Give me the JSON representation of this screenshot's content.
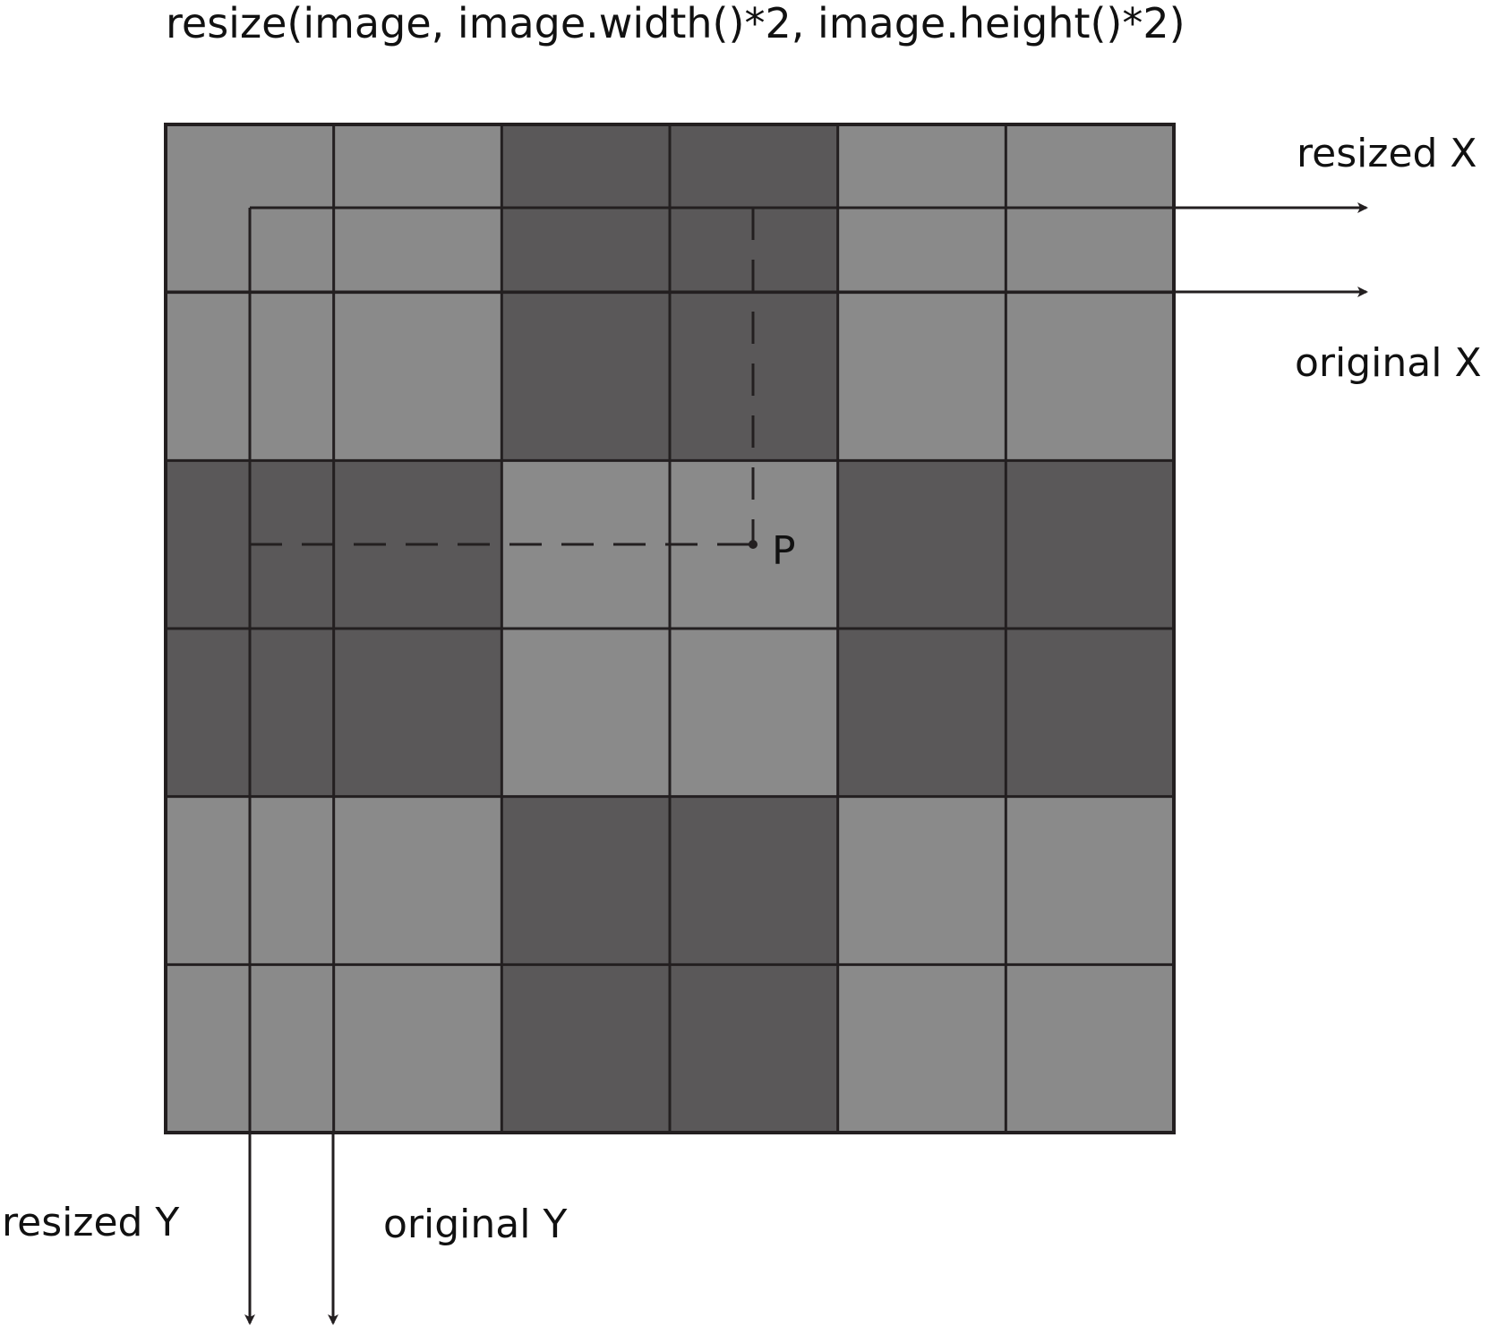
{
  "title": "resize(image, image.width()*2, image.height()*2)",
  "labels": {
    "resized_x": "resized X",
    "original_x": "original X",
    "resized_y": "resized Y",
    "original_y": "original Y",
    "point": "P"
  },
  "grid": {
    "rows": 6,
    "cols": 6,
    "shade_pattern": [
      [
        "light",
        "light",
        "dark",
        "dark",
        "light",
        "light"
      ],
      [
        "light",
        "light",
        "dark",
        "dark",
        "light",
        "light"
      ],
      [
        "dark",
        "dark",
        "light",
        "light",
        "dark",
        "dark"
      ],
      [
        "dark",
        "dark",
        "light",
        "light",
        "dark",
        "dark"
      ],
      [
        "light",
        "light",
        "dark",
        "dark",
        "light",
        "light"
      ],
      [
        "light",
        "light",
        "dark",
        "dark",
        "light",
        "light"
      ]
    ]
  },
  "colors": {
    "light_cell": "#8a8a8a",
    "dark_cell": "#5a5859",
    "line": "#231f20",
    "background": "#ffffff"
  }
}
